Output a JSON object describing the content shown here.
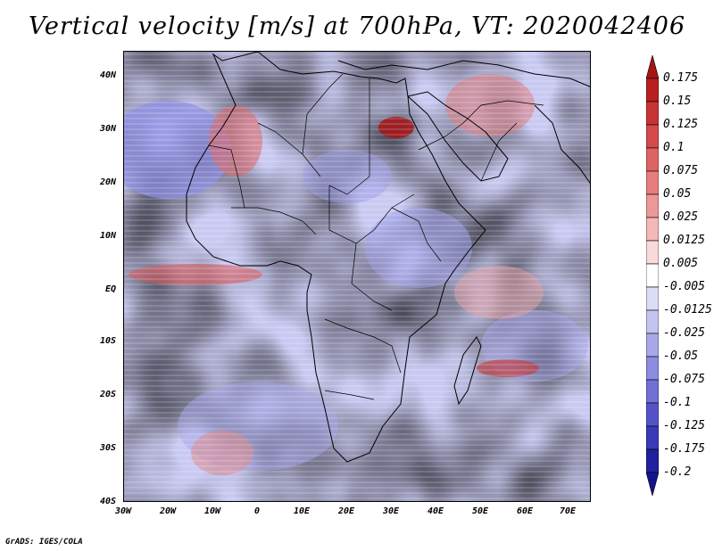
{
  "title": "Vertical velocity [m/s] at 700hPa, VT: 2020042406",
  "credit": "GrADS: IGES/COLA",
  "map": {
    "variable": "Vertical velocity",
    "units": "m/s",
    "level": "700hPa",
    "valid_time": "2020042406",
    "lat_labels": [
      "40N",
      "30N",
      "20N",
      "10N",
      "EQ",
      "10S",
      "20S",
      "30S",
      "40S"
    ],
    "lon_labels": [
      "30W",
      "20W",
      "10W",
      "0",
      "10E",
      "20E",
      "30E",
      "40E",
      "50E",
      "60E",
      "70E"
    ]
  },
  "colorbar": {
    "labels": [
      "0.175",
      "0.15",
      "0.125",
      "0.1",
      "0.075",
      "0.05",
      "0.025",
      "0.0125",
      "0.005",
      "-0.005",
      "-0.0125",
      "-0.025",
      "-0.05",
      "-0.075",
      "-0.1",
      "-0.125",
      "-0.175",
      "-0.2"
    ],
    "colors": [
      "#a61414",
      "#b82020",
      "#c83434",
      "#d44a4a",
      "#de6464",
      "#e67e7e",
      "#ec9898",
      "#f3b8b8",
      "#f9dada",
      "#ffffff",
      "#dcdcf6",
      "#c4c4f0",
      "#a8a8e8",
      "#8c8ce0",
      "#7070d6",
      "#5454c8",
      "#3a3ab8",
      "#2020a0",
      "#14148a"
    ]
  }
}
